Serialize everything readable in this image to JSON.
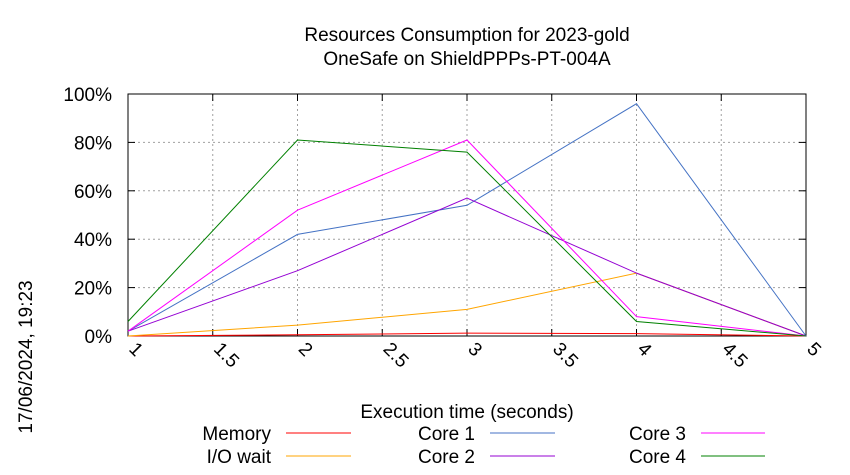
{
  "chart_data": {
    "type": "line",
    "title": "Resources Consumption for 2023-gold",
    "subtitle": "OneSafe on ShieldPPPs-PT-004A",
    "xlabel": "Execution time (seconds)",
    "ylabel": "",
    "side_label": "17/06/2024, 19:23",
    "xlim": [
      1,
      5
    ],
    "ylim": [
      0,
      100
    ],
    "x_ticks": [
      1,
      1.5,
      2,
      2.5,
      3,
      3.5,
      4,
      4.5,
      5
    ],
    "x_tick_labels": [
      "1",
      "1.5",
      "2",
      "2.5",
      "3",
      "3.5",
      "4",
      "4.5",
      "5"
    ],
    "y_ticks": [
      0,
      20,
      40,
      60,
      80,
      100
    ],
    "y_tick_labels": [
      "0%",
      "20%",
      "40%",
      "60%",
      "80%",
      "100%"
    ],
    "grid": true,
    "legend_position": "bottom",
    "series": [
      {
        "name": "Memory",
        "color": "#ff0000",
        "x": [
          1,
          2,
          3,
          4,
          5
        ],
        "y": [
          0,
          0.5,
          1.2,
          1,
          0
        ]
      },
      {
        "name": "I/O wait",
        "color": "#ffa500",
        "x": [
          1,
          2,
          3,
          4,
          5
        ],
        "y": [
          0,
          4.5,
          11,
          26,
          0
        ]
      },
      {
        "name": "Core 1",
        "color": "#4472c4",
        "x": [
          1,
          2,
          3,
          4,
          5
        ],
        "y": [
          2,
          42,
          54,
          96,
          0
        ]
      },
      {
        "name": "Core 2",
        "color": "#9400d3",
        "x": [
          1,
          2,
          3,
          4,
          5
        ],
        "y": [
          2,
          27,
          57,
          26,
          0
        ]
      },
      {
        "name": "Core 3",
        "color": "#ff00ff",
        "x": [
          1,
          2,
          3,
          4,
          5
        ],
        "y": [
          2,
          52,
          81,
          8,
          0
        ]
      },
      {
        "name": "Core 4",
        "color": "#008000",
        "x": [
          1,
          2,
          3,
          4,
          5
        ],
        "y": [
          6,
          81,
          76,
          6,
          0
        ]
      }
    ]
  }
}
